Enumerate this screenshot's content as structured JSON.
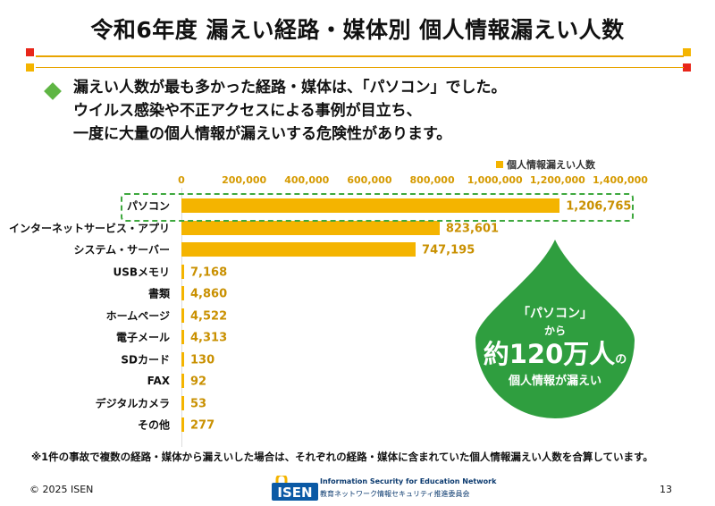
{
  "title": "令和6年度 漏えい経路・媒体別 個人情報漏えい人数",
  "intro": {
    "line1": "漏えい人数が最も多かった経路・媒体は、「パソコン」でした。",
    "line2": "ウイルス感染や不正アクセスによる事例が目立ち、",
    "line3": "一度に大量の個人情報が漏えいする危険性があります。"
  },
  "chart_data": {
    "type": "bar",
    "orientation": "horizontal",
    "series": [
      {
        "name": "個人情報漏えい人数",
        "values": [
          1206765,
          823601,
          747195,
          7168,
          4860,
          4522,
          4313,
          130,
          92,
          53,
          277
        ]
      }
    ],
    "categories": [
      "パソコン",
      "インターネットサービス・アプリ",
      "システム・サーバー",
      "USBメモリ",
      "書類",
      "ホームページ",
      "電子メール",
      "SDカード",
      "FAX",
      "デジタルカメラ",
      "その他"
    ],
    "value_labels": [
      "1,206,765",
      "823,601",
      "747,195",
      "7,168",
      "4,860",
      "4,522",
      "4,313",
      "130",
      "92",
      "53",
      "277"
    ],
    "xlim": [
      0,
      1400000
    ],
    "x_ticks": [
      "0",
      "200,000",
      "400,000",
      "600,000",
      "800,000",
      "1,000,000",
      "1,200,000",
      "1,400,000"
    ],
    "legend_placement": "top-right",
    "bar_color": "#f4b400"
  },
  "callout": {
    "line1": "「パソコン」",
    "line2": "から",
    "big": "約120万人",
    "suffix": "の",
    "line4": "個人情報が漏えい"
  },
  "footnote": "※1件の事故で複数の経路・媒体から漏えいした場合は、それぞれの経路・媒体に含まれていた個人情報漏えい人数を合算しています。",
  "footer": {
    "copyright": "© 2025 ISEN",
    "page": "13",
    "logo_mark": "ISEN",
    "logo_line1": "Information Security for Education Network",
    "logo_line2": "教育ネットワーク情報セキュリティ推進委員会"
  },
  "colors": {
    "accent": "#e8a400",
    "bar": "#f4b400",
    "green": "#2f9e3f",
    "red": "#e8261a"
  }
}
